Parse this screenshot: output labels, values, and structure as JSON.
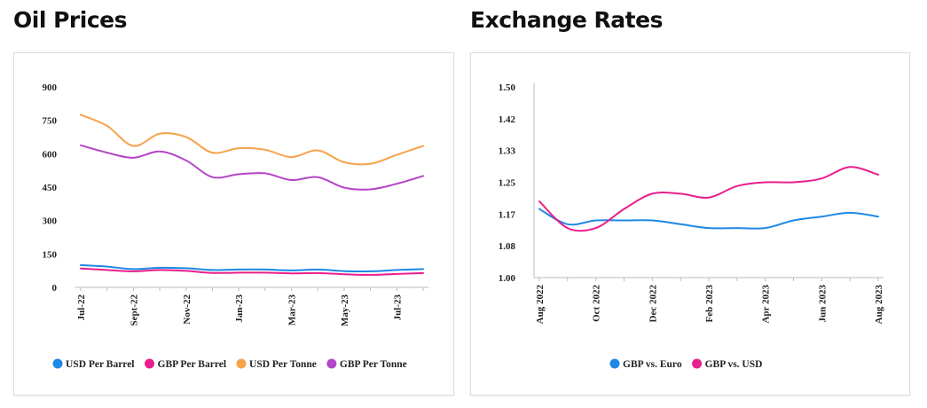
{
  "titles": {
    "oil": "Oil Prices",
    "fx": "Exchange Rates"
  },
  "colors": {
    "blue": "#1e88e5",
    "magenta": "#e91e8c",
    "orange": "#f7a24a",
    "purple": "#b445c7",
    "axis": "#bbbbbb"
  },
  "chart_data": [
    {
      "type": "line",
      "title": "Oil Prices",
      "xlabel": "",
      "ylabel": "",
      "ylim": [
        0,
        900
      ],
      "yticks": [
        "900",
        "750",
        "600",
        "450",
        "300",
        "150",
        "0"
      ],
      "ytick_values": [
        900,
        750,
        600,
        450,
        300,
        150,
        0
      ],
      "xtick_labels": [
        "Jul-22",
        "Sept-22",
        "Nov-22",
        "Jan-23",
        "Mar-23",
        "May-23",
        "Jul-23"
      ],
      "xtick_positions": [
        0,
        2,
        4,
        6,
        8,
        10,
        12
      ],
      "x_count": 14,
      "legend_position": "bottom",
      "series": [
        {
          "name": "USD Per Barrel",
          "color": "#1e88e5",
          "values": [
            100,
            93,
            82,
            88,
            86,
            78,
            80,
            80,
            76,
            80,
            73,
            72,
            78,
            82
          ]
        },
        {
          "name": "GBP Per Barrel",
          "color": "#e91e8c",
          "values": [
            85,
            78,
            72,
            78,
            74,
            65,
            66,
            66,
            63,
            64,
            59,
            56,
            60,
            64
          ]
        },
        {
          "name": "USD Per Tonne",
          "color": "#f7a24a",
          "values": [
            775,
            725,
            635,
            690,
            675,
            605,
            625,
            618,
            585,
            615,
            562,
            555,
            595,
            635
          ]
        },
        {
          "name": "GBP Per Tonne",
          "color": "#b445c7",
          "values": [
            638,
            605,
            582,
            610,
            570,
            495,
            508,
            512,
            482,
            495,
            448,
            440,
            465,
            500
          ]
        }
      ]
    },
    {
      "type": "line",
      "title": "Exchange Rates",
      "xlabel": "",
      "ylabel": "",
      "ylim": [
        1.0,
        1.5
      ],
      "yticks": [
        "1.50",
        "1.42",
        "1.33",
        "1.25",
        "1.17",
        "1.08",
        "1.00"
      ],
      "ytick_values": [
        1.5,
        1.4167,
        1.3333,
        1.25,
        1.1667,
        1.0833,
        1.0
      ],
      "xtick_labels": [
        "Aug 2022",
        "Oct 2022",
        "Dec 2022",
        "Feb 2023",
        "Apr 2023",
        "Jun 2023",
        "Aug 2023"
      ],
      "xtick_positions": [
        0,
        2,
        4,
        6,
        8,
        10,
        12
      ],
      "x_count": 13,
      "legend_position": "bottom",
      "series": [
        {
          "name": "GBP vs. Euro",
          "color": "#1e88e5",
          "values": [
            1.18,
            1.14,
            1.15,
            1.15,
            1.15,
            1.14,
            1.13,
            1.13,
            1.13,
            1.15,
            1.16,
            1.17,
            1.16
          ]
        },
        {
          "name": "GBP vs. USD",
          "color": "#e91e8c",
          "values": [
            1.2,
            1.13,
            1.13,
            1.18,
            1.22,
            1.22,
            1.21,
            1.24,
            1.25,
            1.25,
            1.26,
            1.29,
            1.27
          ]
        }
      ]
    }
  ]
}
